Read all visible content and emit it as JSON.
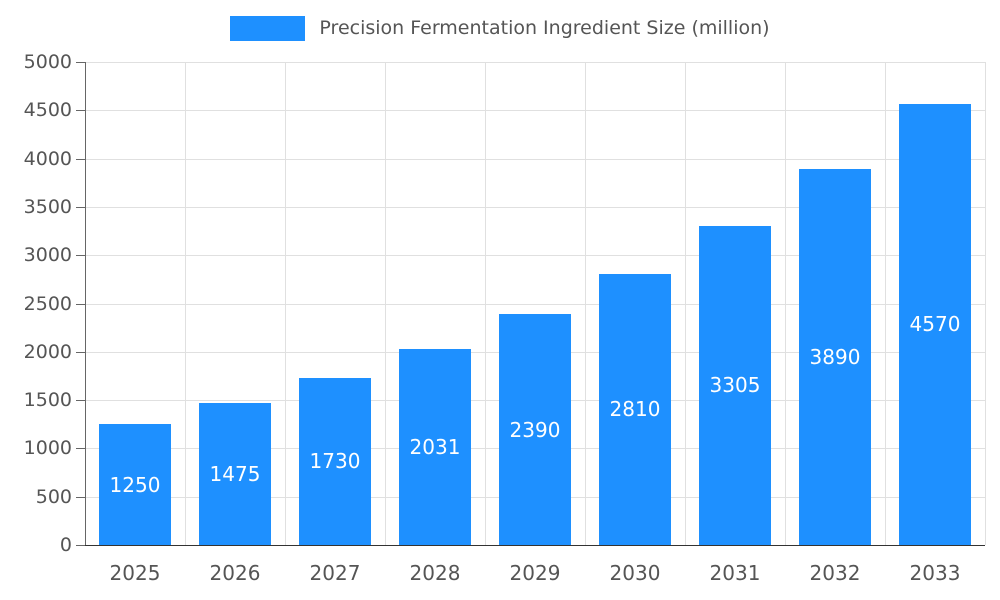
{
  "chart_data": {
    "type": "bar",
    "title": "Precision Fermentation Ingredient Size (million)",
    "categories": [
      "2025",
      "2026",
      "2027",
      "2028",
      "2029",
      "2030",
      "2031",
      "2032",
      "2033"
    ],
    "values": [
      1250,
      1475,
      1730,
      2031,
      2390,
      2810,
      3305,
      3890,
      4570
    ],
    "xlabel": "",
    "ylabel": "",
    "ylim": [
      0,
      5000
    ],
    "ytick_step": 500,
    "grid": true,
    "legend_position": "top",
    "colors": {
      "bar": "#1E90FF",
      "bar_value_label": "#ffffff",
      "axis_text": "#555555",
      "gridline": "#e0e0e0"
    }
  }
}
